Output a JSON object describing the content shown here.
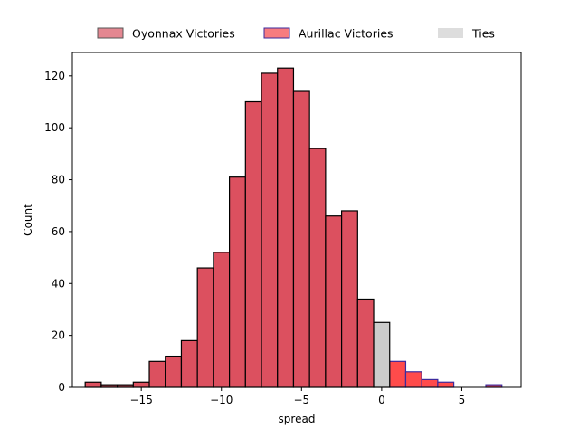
{
  "chart_data": {
    "type": "bar",
    "xlabel": "spread",
    "ylabel": "Count",
    "xlim": [
      -19.3,
      8.7
    ],
    "ylim": [
      0,
      129
    ],
    "x_ticks": [
      -15,
      -10,
      -5,
      0,
      5
    ],
    "x_tick_labels": [
      "−15",
      "−10",
      "−5",
      "0",
      "5"
    ],
    "y_ticks": [
      0,
      20,
      40,
      60,
      80,
      100,
      120
    ],
    "y_tick_labels": [
      "0",
      "20",
      "40",
      "60",
      "80",
      "100",
      "120"
    ],
    "bin_width": 1,
    "legend_placement": "top-center",
    "series": [
      {
        "name": "Oyonnax Victories",
        "color": "#dc505f",
        "edge_color": "#000000",
        "bin_starts": [
          -18.5,
          -17.5,
          -16.5,
          -15.5,
          -14.5,
          -13.5,
          -12.5,
          -11.5,
          -10.5,
          -9.5,
          -8.5,
          -7.5,
          -6.5,
          -5.5,
          -4.5,
          -3.5,
          -2.5,
          -1.5
        ],
        "values": [
          2,
          1,
          1,
          2,
          10,
          12,
          18,
          46,
          52,
          81,
          110,
          121,
          123,
          114,
          92,
          66,
          68,
          34
        ]
      },
      {
        "name": "Aurillac Victories",
        "color": "#ff4b4b",
        "edge_color": "#3b2a9e",
        "bin_starts": [
          0.5,
          1.5,
          2.5,
          3.5,
          4.5,
          5.5,
          6.5
        ],
        "values": [
          10,
          6,
          3,
          2,
          0,
          0,
          1
        ]
      },
      {
        "name": "Ties",
        "color": "#cccccc",
        "edge_color": "#000000",
        "bin_starts": [
          -0.5
        ],
        "values": [
          25
        ]
      }
    ]
  }
}
